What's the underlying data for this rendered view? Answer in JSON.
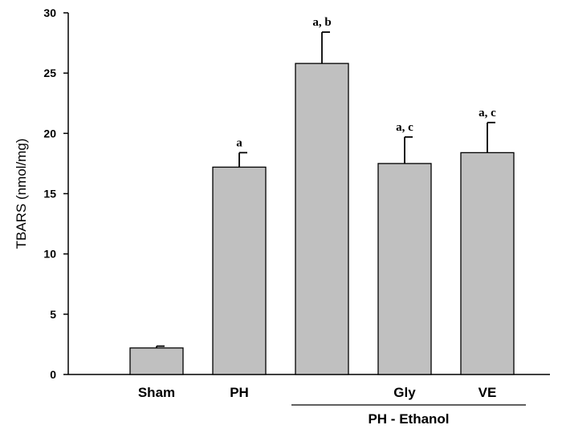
{
  "chart_data": {
    "type": "bar",
    "categories": [
      "Sham",
      "PH",
      "",
      "Gly",
      "VE"
    ],
    "values": [
      2.2,
      17.2,
      25.8,
      17.5,
      18.4
    ],
    "errors": [
      0.15,
      1.2,
      2.6,
      2.2,
      2.5
    ],
    "annotations": [
      "",
      "a",
      "a, b",
      "a, c",
      "a, c"
    ],
    "ylabel": "TBARS (nmol/mg)",
    "xlabel": "",
    "ylim": [
      0,
      30
    ],
    "yticks": [
      0,
      5,
      10,
      15,
      20,
      25,
      30
    ],
    "group_label": "PH - Ethanol",
    "bar_color": "#c0c0c0",
    "bar_edge_color": "#000000",
    "grid": false
  }
}
